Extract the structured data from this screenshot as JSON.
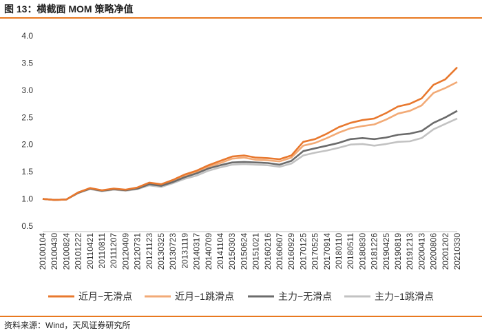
{
  "title": "图 13：横截面 MOM 策略净值",
  "source": "资料来源：Wind，天风证券研究所",
  "colors": {
    "rule": "#E8781F",
    "near_no_slip": "#E8782E",
    "near_1_slip": "#F2AA76",
    "main_no_slip": "#6B6B6B",
    "main_1_slip": "#C2C2C2"
  },
  "chart_data": {
    "type": "line",
    "ylim": [
      0.5,
      4.0
    ],
    "yticks": [
      "4.0",
      "3.5",
      "3.0",
      "2.5",
      "2.0",
      "1.5",
      "1.0",
      "0.5"
    ],
    "xtick_labels": [
      "20100104",
      "20100430",
      "20100824",
      "20101222",
      "20110421",
      "20110811",
      "20111207",
      "20120409",
      "20120731",
      "20121123",
      "20130325",
      "20130723",
      "20131119",
      "20140317",
      "20140709",
      "20141104",
      "20150303",
      "20150624",
      "20151021",
      "20160216",
      "20160607",
      "20160929",
      "20170125",
      "20170525",
      "20170914",
      "20180110",
      "20180511",
      "20180830",
      "20181226",
      "20190425",
      "20190819",
      "20191213",
      "20200413",
      "20200806",
      "20201202",
      "20210330"
    ],
    "legend_position": "bottom",
    "grid": false,
    "series": [
      {
        "name": "近月−无滑点",
        "color_key": "near_no_slip",
        "values": [
          1.0,
          0.98,
          0.99,
          1.12,
          1.2,
          1.16,
          1.19,
          1.17,
          1.21,
          1.3,
          1.27,
          1.35,
          1.45,
          1.52,
          1.62,
          1.7,
          1.78,
          1.8,
          1.76,
          1.75,
          1.73,
          1.8,
          2.05,
          2.1,
          2.2,
          2.32,
          2.4,
          2.45,
          2.48,
          2.58,
          2.7,
          2.75,
          2.85,
          3.1,
          3.2,
          3.42
        ]
      },
      {
        "name": "近月−1跳滑点",
        "color_key": "near_1_slip",
        "values": [
          1.0,
          0.98,
          0.99,
          1.12,
          1.19,
          1.15,
          1.18,
          1.16,
          1.2,
          1.29,
          1.26,
          1.34,
          1.43,
          1.49,
          1.59,
          1.66,
          1.74,
          1.76,
          1.72,
          1.71,
          1.69,
          1.76,
          1.98,
          2.03,
          2.12,
          2.22,
          2.3,
          2.34,
          2.37,
          2.46,
          2.57,
          2.62,
          2.72,
          2.95,
          3.04,
          3.15
        ]
      },
      {
        "name": "主力−无滑点",
        "color_key": "main_no_slip",
        "values": [
          1.0,
          0.98,
          0.99,
          1.11,
          1.19,
          1.15,
          1.18,
          1.16,
          1.19,
          1.27,
          1.24,
          1.31,
          1.4,
          1.47,
          1.56,
          1.62,
          1.67,
          1.68,
          1.67,
          1.66,
          1.63,
          1.7,
          1.88,
          1.93,
          1.98,
          2.03,
          2.1,
          2.12,
          2.1,
          2.13,
          2.18,
          2.2,
          2.25,
          2.4,
          2.5,
          2.62
        ]
      },
      {
        "name": "主力−1跳滑点",
        "color_key": "main_1_slip",
        "values": [
          1.0,
          0.98,
          0.99,
          1.11,
          1.18,
          1.14,
          1.17,
          1.15,
          1.18,
          1.25,
          1.22,
          1.29,
          1.37,
          1.43,
          1.52,
          1.58,
          1.63,
          1.64,
          1.63,
          1.62,
          1.59,
          1.65,
          1.8,
          1.85,
          1.89,
          1.94,
          2.0,
          2.01,
          1.98,
          2.01,
          2.05,
          2.06,
          2.12,
          2.28,
          2.38,
          2.48
        ]
      }
    ]
  }
}
